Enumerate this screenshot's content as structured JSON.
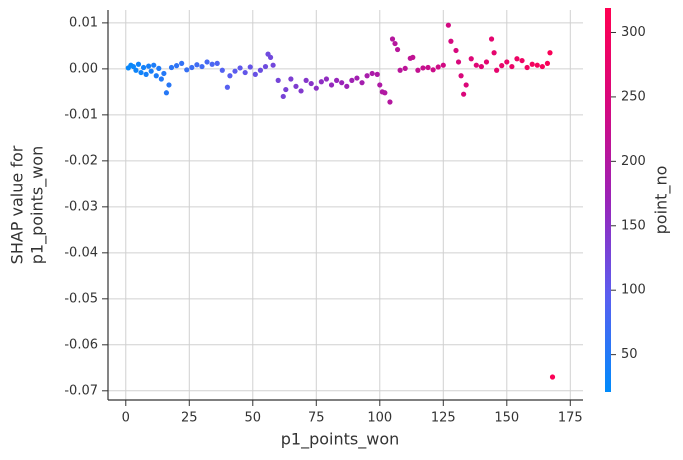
{
  "chart_data": {
    "type": "scatter",
    "xlabel": "p1_points_won",
    "ylabel": [
      "SHAP value for",
      "p1_points_won"
    ],
    "colorbar_label": "point_no",
    "colormap": [
      "#008bfb",
      "#5a5ef0",
      "#9a23b8",
      "#d6087e",
      "#ff0051"
    ],
    "grid": true,
    "xlim": [
      -7,
      180
    ],
    "xticks": [
      0,
      25,
      50,
      75,
      100,
      125,
      150,
      175
    ],
    "ylim": [
      -0.072,
      0.0128
    ],
    "yticks": [
      0.01,
      {
        "value": 0,
        "label": "0.00"
      },
      -0.01,
      -0.02,
      -0.03,
      -0.04,
      -0.05,
      -0.06,
      -0.07
    ],
    "clim": [
      21,
      319
    ],
    "cticks": [
      50,
      100,
      150,
      200,
      250,
      300
    ],
    "x": [
      1,
      2,
      3,
      4,
      5,
      6,
      7,
      8,
      9,
      10,
      11,
      12,
      13,
      14,
      15,
      16,
      17,
      18,
      20,
      22,
      24,
      26,
      28,
      30,
      32,
      34,
      36,
      38,
      40,
      41,
      43,
      45,
      47,
      49,
      51,
      53,
      55,
      56,
      57,
      58,
      60,
      62,
      63,
      65,
      67,
      69,
      71,
      73,
      75,
      77,
      79,
      81,
      83,
      85,
      87,
      89,
      91,
      93,
      95,
      97,
      99,
      100,
      101,
      102,
      104,
      105,
      106,
      107,
      108,
      110,
      112,
      113,
      115,
      117,
      119,
      121,
      123,
      125,
      127,
      128,
      130,
      131,
      132,
      133,
      134,
      136,
      138,
      140,
      142,
      144,
      145,
      146,
      148,
      150,
      152,
      154,
      156,
      158,
      160,
      162,
      164,
      166,
      167,
      168
    ],
    "values": [
      0.0002,
      0.0008,
      0.0005,
      -0.0003,
      0.001,
      -0.0008,
      0.0003,
      -0.0012,
      0.0006,
      -0.0005,
      0.0008,
      -0.0015,
      0.0001,
      -0.0022,
      -0.001,
      -0.0052,
      -0.0035,
      0.0003,
      0.0007,
      0.0012,
      -0.0002,
      0.0003,
      0.0009,
      0.0005,
      0.0015,
      0.001,
      0.0012,
      -0.0003,
      -0.004,
      -0.0015,
      -0.0005,
      0.0002,
      -0.0008,
      0.0004,
      -0.0012,
      -0.0003,
      0.0005,
      0.0032,
      0.0025,
      0.0008,
      -0.0025,
      -0.006,
      -0.0045,
      -0.0022,
      -0.0038,
      -0.0048,
      -0.0025,
      -0.0032,
      -0.0042,
      -0.0028,
      -0.0022,
      -0.0035,
      -0.0025,
      -0.003,
      -0.0038,
      -0.0025,
      -0.002,
      -0.003,
      -0.0015,
      -0.001,
      -0.0012,
      -0.0035,
      -0.005,
      -0.0052,
      -0.0072,
      0.0065,
      0.0055,
      0.0042,
      -0.0003,
      0.0001,
      0.0023,
      0.0025,
      -0.0003,
      0.0002,
      0.0003,
      -0.0002,
      0.0004,
      0.0008,
      0.0095,
      0.006,
      0.004,
      0.0015,
      -0.0015,
      -0.0055,
      -0.0035,
      0.0022,
      0.0008,
      0.0005,
      0.0015,
      0.0065,
      0.0035,
      -0.0003,
      0.0007,
      0.0015,
      0.0005,
      0.0022,
      0.0018,
      0.0003,
      0.001,
      0.0008,
      0.0005,
      0.0012,
      0.0035,
      -0.067
    ],
    "color_values": [
      27,
      28,
      30,
      32,
      34,
      35,
      37,
      39,
      40,
      42,
      44,
      45,
      47,
      49,
      51,
      52,
      54,
      56,
      59,
      62,
      66,
      69,
      73,
      76,
      79,
      83,
      86,
      90,
      93,
      95,
      98,
      102,
      105,
      108,
      112,
      115,
      119,
      120,
      122,
      124,
      127,
      130,
      132,
      136,
      139,
      142,
      146,
      149,
      153,
      156,
      159,
      163,
      166,
      170,
      173,
      176,
      180,
      183,
      187,
      190,
      193,
      195,
      197,
      198,
      202,
      204,
      205,
      207,
      209,
      212,
      215,
      217,
      221,
      224,
      227,
      231,
      234,
      238,
      241,
      243,
      246,
      248,
      249,
      251,
      253,
      256,
      260,
      263,
      266,
      270,
      272,
      273,
      277,
      280,
      283,
      287,
      290,
      294,
      297,
      300,
      304,
      307,
      309,
      311
    ]
  }
}
